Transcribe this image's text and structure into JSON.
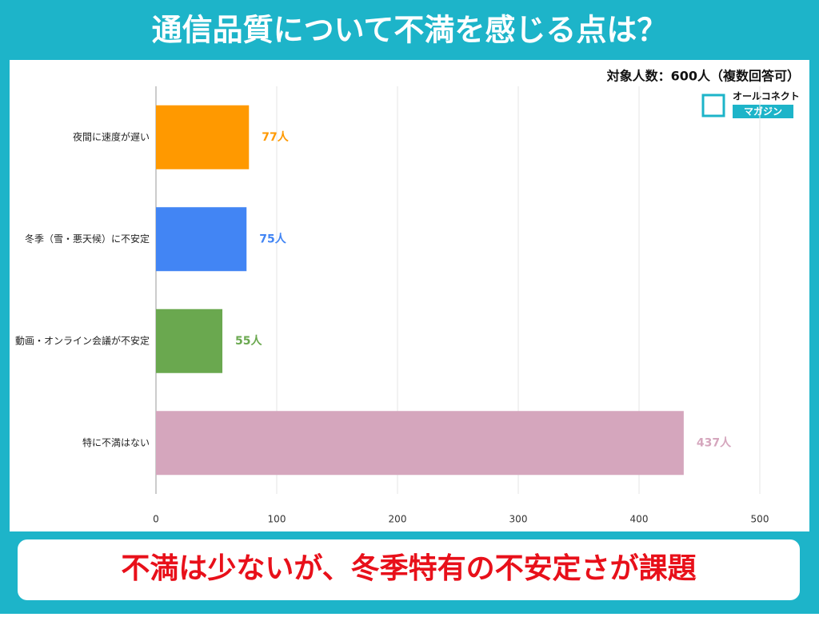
{
  "chart_data": {
    "type": "bar",
    "orientation": "horizontal",
    "title": "通信品質について不満を感じる点は？",
    "subtitle": "対象人数：600人（複数回答可）",
    "logo": [
      "オールコネクト",
      "マガジン"
    ],
    "footer": "不満は少ないが、冬季特有の不安定さが課題",
    "categories": [
      "夜間に速度が遅い",
      "冬季（雪・悪天候）に不安定",
      "動画・オンライン会議が不安定",
      "特に不満はない"
    ],
    "values": [
      77,
      75,
      55,
      437
    ],
    "value_labels": [
      "77人",
      "75人",
      "55人",
      "437人"
    ],
    "colors": [
      "#ff9900",
      "#4285f4",
      "#6aa84f",
      "#d5a6bd"
    ],
    "xlim": [
      0,
      500
    ],
    "xticks": [
      0,
      100,
      200,
      300,
      400,
      500
    ],
    "grid": true
  }
}
